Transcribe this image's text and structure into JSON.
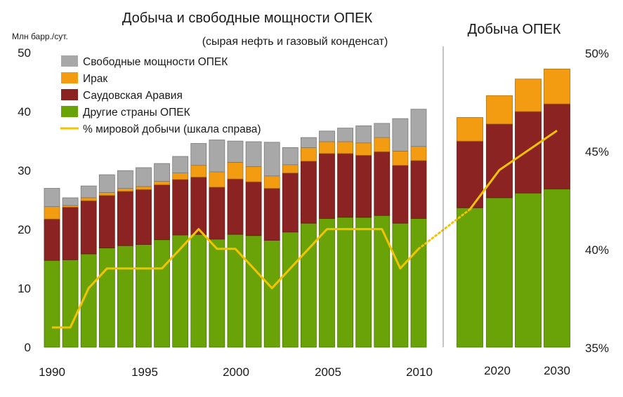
{
  "chart_data": {
    "type": "bar",
    "stacked": true,
    "title": "Добыча и свободные мощности ОПЕК",
    "subtitle": "(сырая нефть и газовый конденсат)",
    "right_panel_title": "Добыча ОПЕК",
    "ylabel": "Млн барр./сут.",
    "ylim": [
      0,
      50
    ],
    "y_ticks": [
      "0",
      "10",
      "20",
      "30",
      "40",
      "50"
    ],
    "y2lim": [
      35,
      50
    ],
    "y2_ticks": [
      "35%",
      "40%",
      "45%",
      "50%"
    ],
    "x_tick_labels": [
      "1990",
      "1995",
      "2000",
      "2005",
      "2010",
      "2020",
      "2030"
    ],
    "categories": [
      "1990",
      "1991",
      "1992",
      "1993",
      "1994",
      "1995",
      "1996",
      "1997",
      "1998",
      "1999",
      "2000",
      "2001",
      "2002",
      "2003",
      "2004",
      "2005",
      "2006",
      "2007",
      "2008",
      "2009",
      "2010",
      "2015",
      "2020",
      "2025",
      "2030"
    ],
    "series": [
      {
        "name": "Другие страны ОПЕК",
        "color": "#6aa308",
        "values": [
          14.7,
          14.8,
          15.8,
          16.8,
          17.2,
          17.4,
          18.2,
          19.0,
          19.1,
          18.3,
          19.1,
          18.9,
          18.1,
          19.5,
          21.0,
          21.8,
          22.0,
          22.0,
          22.3,
          21.0,
          21.8,
          23.6,
          25.3,
          26.1,
          26.8
        ]
      },
      {
        "name": "Саудовская Аравия",
        "color": "#8b2323",
        "values": [
          7.0,
          8.9,
          9.0,
          8.9,
          9.2,
          9.3,
          9.3,
          9.4,
          9.7,
          8.8,
          9.4,
          9.1,
          8.8,
          10.0,
          10.5,
          11.0,
          10.8,
          10.5,
          10.8,
          9.8,
          9.8,
          11.3,
          12.5,
          13.8,
          14.4
        ]
      },
      {
        "name": "Ирак",
        "color": "#f39c12",
        "values": [
          2.1,
          0.3,
          0.5,
          0.5,
          0.5,
          0.5,
          0.6,
          1.1,
          2.0,
          2.6,
          2.8,
          2.6,
          2.1,
          1.4,
          2.3,
          2.0,
          2.0,
          2.1,
          2.4,
          2.4,
          2.4,
          4.0,
          4.8,
          5.5,
          5.9
        ]
      },
      {
        "name": "Свободные мощности ОПЕК",
        "color": "#a8a8a8",
        "values": [
          3.1,
          1.3,
          2.0,
          3.0,
          3.0,
          3.2,
          3.0,
          2.8,
          3.7,
          5.4,
          3.6,
          4.2,
          5.7,
          2.9,
          1.7,
          1.8,
          2.3,
          2.9,
          2.4,
          5.5,
          6.3,
          0,
          0,
          0,
          0
        ]
      }
    ],
    "line_series": {
      "name": "% мировой добычи (шкала справа)",
      "color": "#f2c300",
      "axis": "right",
      "values": [
        36,
        36,
        38,
        39,
        39,
        39,
        39,
        40,
        41,
        40,
        40,
        39,
        38,
        39,
        40,
        41,
        41,
        41,
        41,
        39,
        40,
        42,
        44,
        45,
        46
      ],
      "dotted_between": [
        "2010",
        "2015"
      ]
    },
    "legend": {
      "position": "top-left",
      "items": [
        {
          "label": "Свободные мощности ОПЕК",
          "color": "#a8a8a8"
        },
        {
          "label": "Ирак",
          "color": "#f39c12"
        },
        {
          "label": "Саудовская Аравия",
          "color": "#8b2323"
        },
        {
          "label": "Другие страны ОПЕК",
          "color": "#6aa308"
        },
        {
          "label": "% мировой добычи (шкала справа)",
          "color": "#f2c300"
        }
      ]
    }
  }
}
